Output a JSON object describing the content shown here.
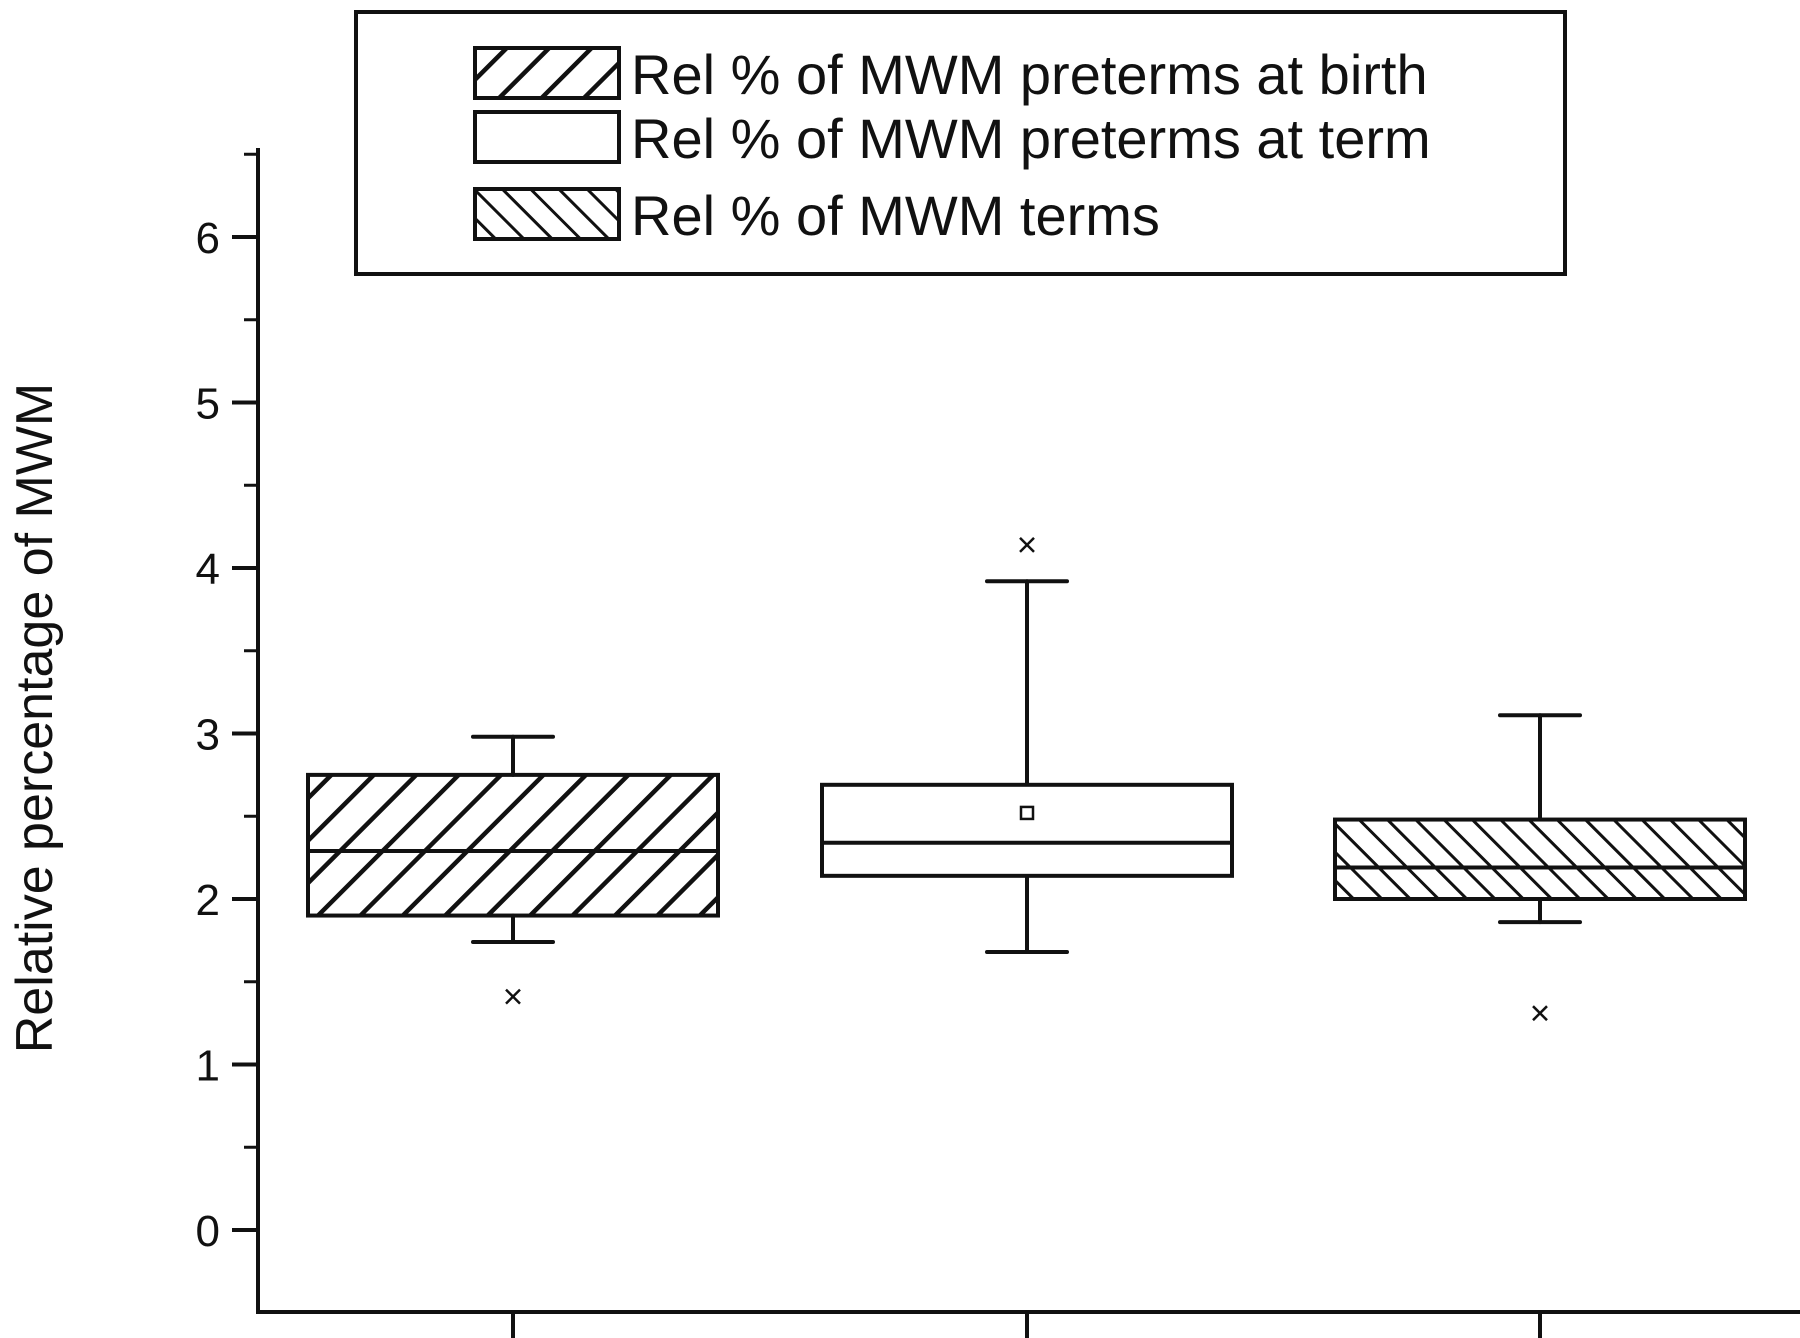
{
  "chart_data": {
    "type": "box",
    "ylabel": "Relative percentage of MWM",
    "xlabel": "",
    "ylim": [
      -0.5,
      6.5
    ],
    "yticks": [
      0,
      1,
      2,
      3,
      4,
      5,
      6
    ],
    "grid": false,
    "legend_position": "top",
    "series": [
      {
        "name": "Rel % of MWM preterms at birth",
        "pattern": "hatch-backslash",
        "q1": 1.9,
        "median": 2.29,
        "q3": 2.75,
        "whisker_low": 1.74,
        "whisker_high": 2.98,
        "mean": 2.29,
        "outliers": [
          1.41
        ]
      },
      {
        "name": "Rel % of MWM preterms at term",
        "pattern": "none",
        "q1": 2.14,
        "median": 2.34,
        "q3": 2.69,
        "whisker_low": 1.68,
        "whisker_high": 3.92,
        "mean": 2.52,
        "outliers": [
          4.14
        ]
      },
      {
        "name": "Rel % of MWM terms",
        "pattern": "hatch-slash",
        "q1": 2.0,
        "median": 2.19,
        "q3": 2.48,
        "whisker_low": 1.86,
        "whisker_high": 3.11,
        "mean": 2.19,
        "outliers": [
          1.31
        ]
      }
    ]
  },
  "colors": {
    "ink": "#111111",
    "background": "#ffffff"
  }
}
